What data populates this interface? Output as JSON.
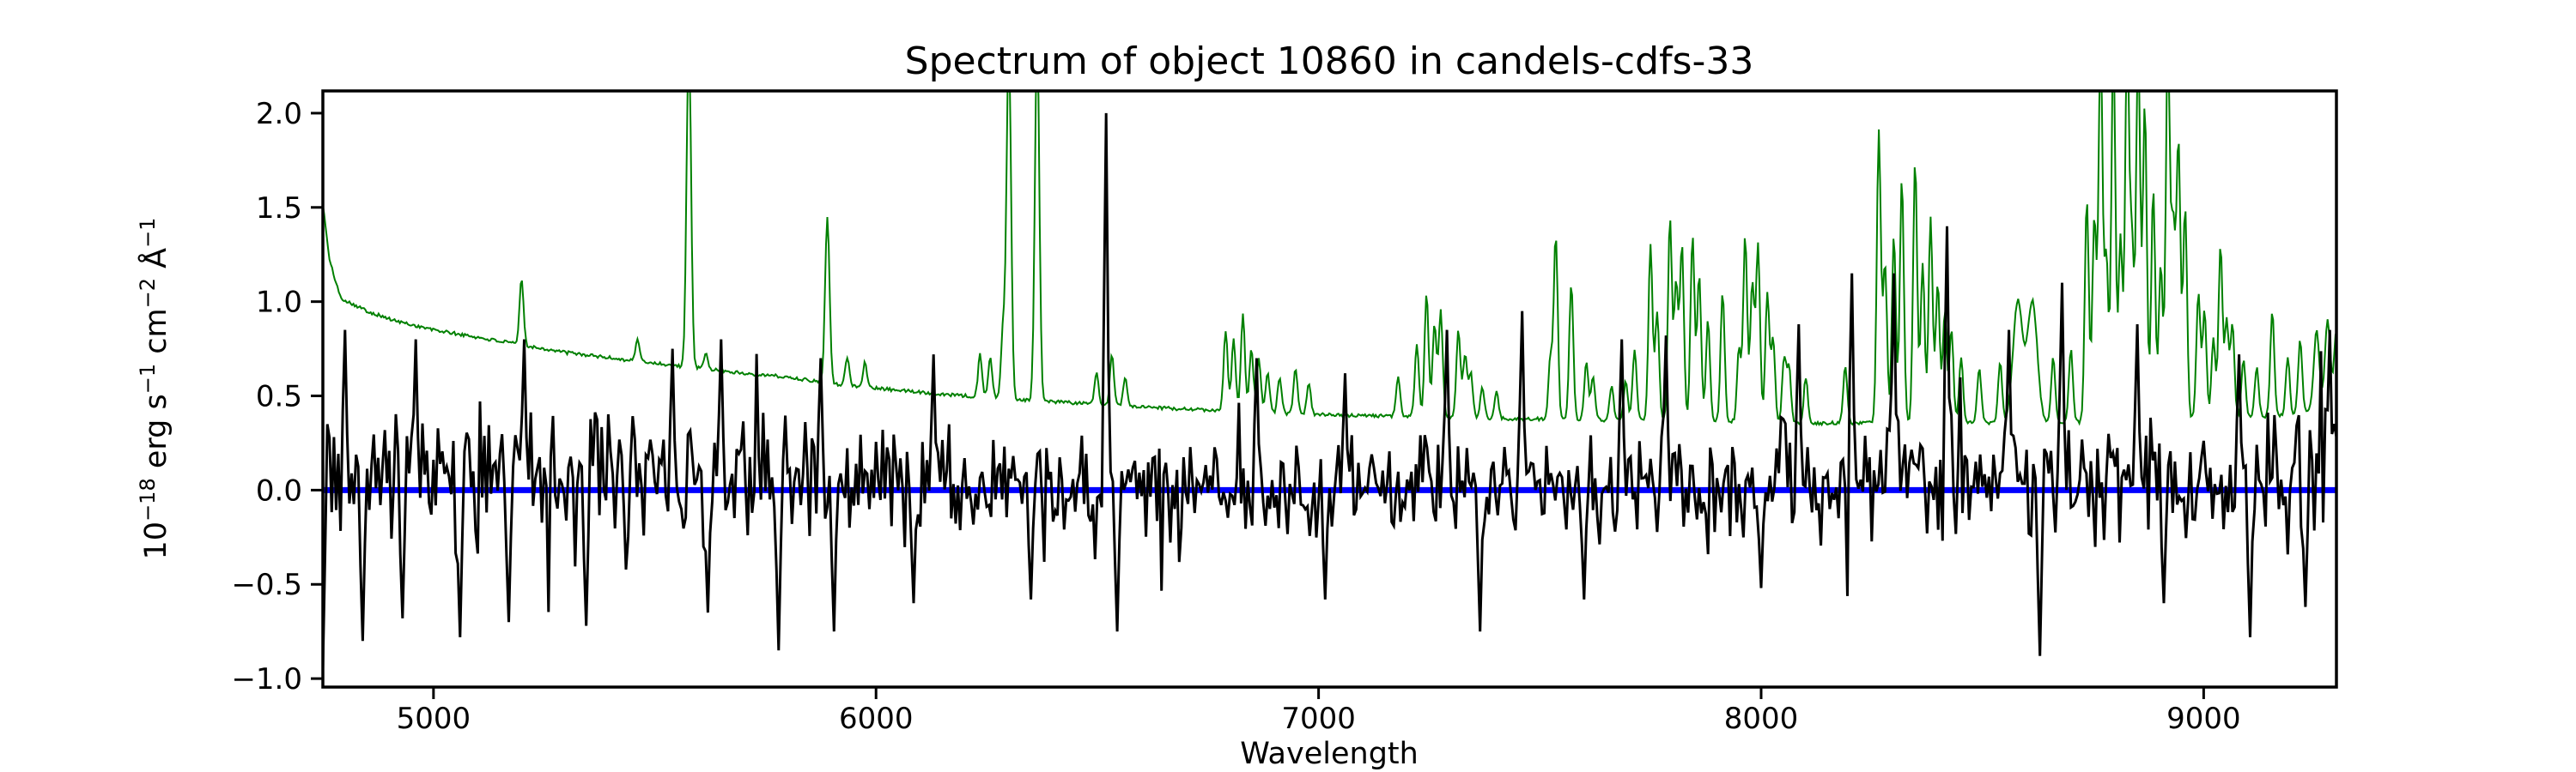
{
  "figure": {
    "background": "#ffffff",
    "frame_color": "#000000"
  },
  "chart_data": {
    "type": "line",
    "title": "Spectrum of object 10860 in candels-cdfs-33",
    "xlabel": "Wavelength",
    "ylabel": "10^-18 erg s^-1 cm^-2 Å^-1",
    "ylabel_segments": [
      [
        "n",
        "10"
      ],
      [
        "s",
        "−18"
      ],
      [
        "n",
        " erg s"
      ],
      [
        "s",
        "−1"
      ],
      [
        "n",
        " cm"
      ],
      [
        "s",
        "−2"
      ],
      [
        "n",
        " Å"
      ],
      [
        "s",
        "−1"
      ]
    ],
    "xlim": [
      4750,
      9300
    ],
    "ylim": [
      -1.045,
      2.118
    ],
    "xticks": {
      "values": [
        5000,
        6000,
        7000,
        8000,
        9000
      ],
      "labels": [
        "5000",
        "6000",
        "7000",
        "8000",
        "9000"
      ]
    },
    "yticks": {
      "values": [
        2.0,
        1.5,
        1.0,
        0.5,
        0.0,
        -0.5,
        -1.0
      ],
      "labels": [
        "2.0",
        "1.5",
        "1.0",
        "0.5",
        "0.0",
        "−0.5",
        "−1.0"
      ]
    },
    "grid": false,
    "legend": null,
    "series": [
      {
        "id": "sky",
        "name": "sky background spectrum",
        "color": "#008000",
        "line_width": 2,
        "sample_step": 3,
        "wiggle": 0.018,
        "wiggle_seed": 101,
        "continuum_anchors": [
          [
            4750,
            1.52
          ],
          [
            4765,
            1.22
          ],
          [
            4790,
            1.02
          ],
          [
            4850,
            0.95
          ],
          [
            4910,
            0.9
          ],
          [
            5000,
            0.85
          ],
          [
            5100,
            0.81
          ],
          [
            5200,
            0.77
          ],
          [
            5300,
            0.73
          ],
          [
            5440,
            0.69
          ],
          [
            5570,
            0.655
          ],
          [
            5700,
            0.62
          ],
          [
            5800,
            0.6
          ],
          [
            5900,
            0.565
          ],
          [
            6000,
            0.54
          ],
          [
            6100,
            0.52
          ],
          [
            6200,
            0.5
          ],
          [
            6300,
            0.485
          ],
          [
            6400,
            0.47
          ],
          [
            6500,
            0.455
          ],
          [
            6600,
            0.44
          ],
          [
            6700,
            0.43
          ],
          [
            6800,
            0.42
          ],
          [
            6900,
            0.41
          ],
          [
            7000,
            0.4
          ],
          [
            7100,
            0.395
          ],
          [
            7250,
            0.39
          ],
          [
            7400,
            0.38
          ],
          [
            7550,
            0.375
          ],
          [
            7700,
            0.37
          ],
          [
            7850,
            0.37
          ],
          [
            8000,
            0.36
          ],
          [
            8150,
            0.355
          ],
          [
            8300,
            0.36
          ],
          [
            8450,
            0.36
          ],
          [
            8580,
            0.355
          ],
          [
            8700,
            0.36
          ],
          [
            8800,
            0.37
          ],
          [
            8900,
            0.38
          ],
          [
            9000,
            0.38
          ],
          [
            9100,
            0.385
          ],
          [
            9200,
            0.4
          ],
          [
            9260,
            0.43
          ],
          [
            9300,
            0.46
          ]
        ],
        "emission_lines": [
          [
            5199,
            1.12,
            4.5
          ],
          [
            5461,
            0.8,
            4.5
          ],
          [
            5577,
            2.4,
            5
          ],
          [
            5616,
            0.72,
            4.5
          ],
          [
            5890,
            1.45,
            5
          ],
          [
            5935,
            0.7,
            4.5
          ],
          [
            5975,
            0.68,
            4.5
          ],
          [
            6235,
            0.72,
            4.5
          ],
          [
            6258,
            0.7,
            4.5
          ],
          [
            6287,
            0.85,
            4.5
          ],
          [
            6300,
            2.4,
            5
          ],
          [
            6364,
            2.4,
            5
          ],
          [
            6498,
            0.62,
            4.5
          ],
          [
            6533,
            0.72,
            4.5
          ],
          [
            6563,
            0.6,
            4.5
          ],
          [
            6790,
            0.85,
            4.5
          ],
          [
            6808,
            0.8,
            4.5
          ],
          [
            6829,
            0.93,
            4.5
          ],
          [
            6848,
            0.75,
            4.5
          ],
          [
            6865,
            0.7,
            4.5
          ],
          [
            6885,
            0.62,
            4.5
          ],
          [
            6912,
            0.6,
            4.5
          ],
          [
            6948,
            0.65,
            4.5
          ],
          [
            6978,
            0.56,
            4.5
          ],
          [
            7180,
            0.6,
            4.5
          ],
          [
            7222,
            0.78,
            4.5
          ],
          [
            7244,
            1.05,
            4.5
          ],
          [
            7262,
            0.88,
            4.5
          ],
          [
            7276,
            0.95,
            4.5
          ],
          [
            7316,
            0.85,
            4.5
          ],
          [
            7331,
            0.72,
            4.5
          ],
          [
            7344,
            0.62,
            4.5
          ],
          [
            7370,
            0.55,
            4.5
          ],
          [
            7402,
            0.52,
            4.5
          ],
          [
            7524,
            0.7,
            4.5
          ],
          [
            7536,
            1.35,
            4.5
          ],
          [
            7571,
            1.1,
            4.5
          ],
          [
            7605,
            0.68,
            4.5
          ],
          [
            7620,
            0.6,
            4.5
          ],
          [
            7662,
            0.55,
            4.5
          ],
          [
            7694,
            0.58,
            4.5
          ],
          [
            7714,
            0.75,
            4.5
          ],
          [
            7750,
            1.3,
            4.5
          ],
          [
            7765,
            0.95,
            4.5
          ],
          [
            7794,
            1.45,
            4.5
          ],
          [
            7808,
            1.1,
            4.5
          ],
          [
            7821,
            1.3,
            4.5
          ],
          [
            7845,
            1.35,
            4.5
          ],
          [
            7860,
            1.15,
            4.5
          ],
          [
            7880,
            0.9,
            4.5
          ],
          [
            7913,
            1.05,
            4.5
          ],
          [
            7950,
            0.75,
            4.5
          ],
          [
            7964,
            1.35,
            4.5
          ],
          [
            7980,
            1.1,
            4.5
          ],
          [
            7993,
            1.3,
            4.5
          ],
          [
            8014,
            1.05,
            4.5
          ],
          [
            8027,
            0.8,
            4.5
          ],
          [
            8052,
            0.7,
            4.5
          ],
          [
            8063,
            0.65,
            4.5
          ],
          [
            8101,
            0.6,
            4.5
          ],
          [
            8190,
            0.65,
            4.5
          ],
          [
            8266,
            1.9,
            4.5
          ],
          [
            8280,
            1.2,
            4.5
          ],
          [
            8300,
            1.35,
            4.5
          ],
          [
            8318,
            1.65,
            4.5
          ],
          [
            8348,
            1.75,
            4.5
          ],
          [
            8365,
            1.2,
            4.5
          ],
          [
            8383,
            1.45,
            4.5
          ],
          [
            8399,
            1.1,
            4.5
          ],
          [
            8415,
            0.95,
            4.5
          ],
          [
            8430,
            0.85,
            4.5
          ],
          [
            8452,
            0.7,
            4.5
          ],
          [
            8493,
            0.65,
            4.5
          ],
          [
            8540,
            0.68,
            4.5
          ],
          [
            8580,
            1.0,
            11
          ],
          [
            8613,
            1.0,
            11
          ],
          [
            8660,
            0.7,
            4.5
          ],
          [
            8700,
            0.75,
            4.5
          ],
          [
            8736,
            1.55,
            4.5
          ],
          [
            8753,
            1.45,
            4.5
          ],
          [
            8767,
            2.4,
            4.5
          ],
          [
            8780,
            1.25,
            4.5
          ],
          [
            8796,
            2.4,
            4.5
          ],
          [
            8812,
            1.35,
            4.5
          ],
          [
            8827,
            2.4,
            4.5
          ],
          [
            8838,
            1.3,
            4.5
          ],
          [
            8852,
            2.4,
            4.5
          ],
          [
            8867,
            2.05,
            4.5
          ],
          [
            8886,
            1.6,
            4.5
          ],
          [
            8903,
            1.2,
            4.5
          ],
          [
            8919,
            2.4,
            4.5
          ],
          [
            8931,
            1.4,
            4.5
          ],
          [
            8943,
            1.85,
            4.5
          ],
          [
            8958,
            1.5,
            4.5
          ],
          [
            8988,
            1.05,
            4.5
          ],
          [
            9002,
            0.95,
            4.5
          ],
          [
            9022,
            0.8,
            4.5
          ],
          [
            9038,
            1.3,
            4.5
          ],
          [
            9052,
            0.9,
            4.5
          ],
          [
            9065,
            0.88,
            4.5
          ],
          [
            9090,
            0.7,
            4.5
          ],
          [
            9120,
            0.65,
            4.5
          ],
          [
            9155,
            0.95,
            4.5
          ],
          [
            9190,
            0.7,
            4.5
          ],
          [
            9218,
            0.8,
            4.5
          ],
          [
            9255,
            0.85,
            6
          ],
          [
            9280,
            0.9,
            6
          ],
          [
            9300,
            0.85,
            5
          ]
        ]
      },
      {
        "id": "object",
        "name": "object flux spectrum",
        "color": "#000000",
        "line_width": 3,
        "sample_step": 5,
        "clip": [
          -1.02,
          2.05
        ],
        "noise": {
          "seed": 2024,
          "spike_prob": 0.06,
          "spike_boost": 1.85,
          "bias_anchors": [
            [
              4750,
              0.1
            ],
            [
              5500,
              0.07
            ],
            [
              6500,
              0.04
            ],
            [
              7500,
              0.03
            ],
            [
              9300,
              0.03
            ]
          ],
          "amp_anchors": [
            [
              4750,
              0.5
            ],
            [
              5000,
              0.46
            ],
            [
              5300,
              0.42
            ],
            [
              5700,
              0.4
            ],
            [
              6200,
              0.36
            ],
            [
              6800,
              0.33
            ],
            [
              7400,
              0.33
            ],
            [
              8000,
              0.36
            ],
            [
              8600,
              0.4
            ],
            [
              9000,
              0.42
            ],
            [
              9300,
              0.46
            ]
          ]
        },
        "peaks": [
          [
            4757,
            1.0
          ],
          [
            4800,
            0.85
          ],
          [
            4960,
            0.8
          ],
          [
            5207,
            0.8
          ],
          [
            5538,
            0.75
          ],
          [
            5650,
            0.8
          ],
          [
            5875,
            0.7
          ],
          [
            6130,
            0.72
          ],
          [
            6520,
            2.0
          ],
          [
            6860,
            0.7
          ],
          [
            7060,
            0.62
          ],
          [
            7290,
            0.85
          ],
          [
            7462,
            0.95
          ],
          [
            7683,
            0.8
          ],
          [
            7786,
            0.82
          ],
          [
            8085,
            0.88
          ],
          [
            8203,
            1.15
          ],
          [
            8300,
            1.15
          ],
          [
            8422,
            1.4
          ],
          [
            8560,
            0.85
          ],
          [
            8680,
            1.1
          ],
          [
            8848,
            0.88
          ],
          [
            9080,
            0.72
          ],
          [
            9285,
            0.85
          ]
        ],
        "dips": [
          [
            4752,
            -0.95
          ],
          [
            4838,
            -0.8
          ],
          [
            4930,
            -0.68
          ],
          [
            5062,
            -0.78
          ],
          [
            5170,
            -0.7
          ],
          [
            5345,
            -0.72
          ],
          [
            5620,
            -0.65
          ],
          [
            5782,
            -0.85
          ],
          [
            5905,
            -0.75
          ],
          [
            6085,
            -0.6
          ],
          [
            6350,
            -0.58
          ],
          [
            6545,
            -0.75
          ],
          [
            7015,
            -0.58
          ],
          [
            7365,
            -0.75
          ],
          [
            7600,
            -0.58
          ],
          [
            8000,
            -0.52
          ],
          [
            8630,
            -0.88
          ],
          [
            8910,
            -0.6
          ],
          [
            9105,
            -0.78
          ],
          [
            9230,
            -0.62
          ]
        ]
      },
      {
        "id": "zero",
        "name": "zero flux reference line",
        "color": "#0000ff",
        "line_width": 7,
        "y": 0.0
      }
    ]
  }
}
